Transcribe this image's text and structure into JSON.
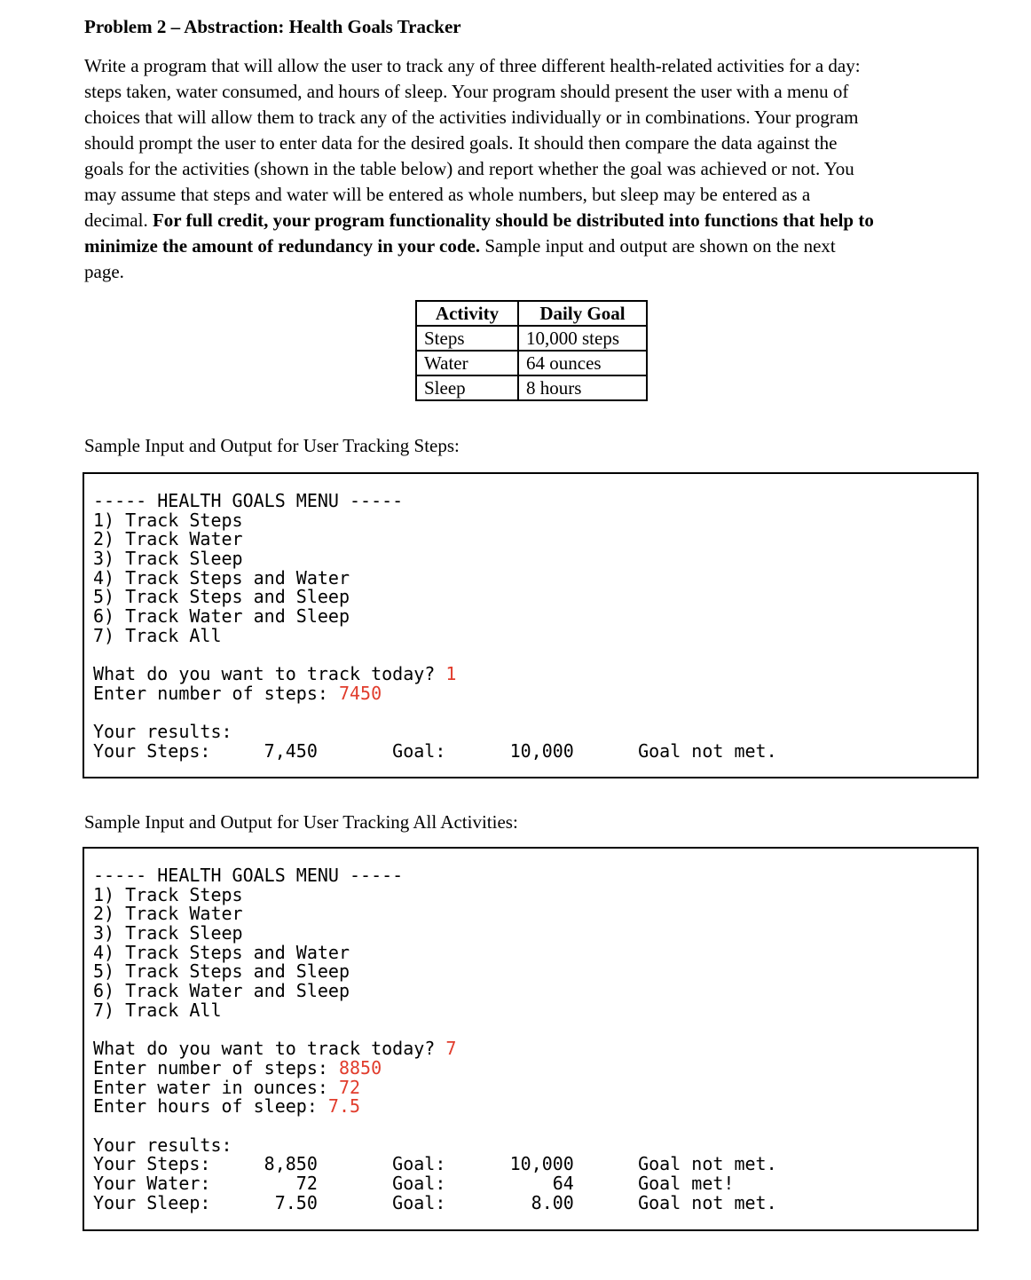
{
  "document": {
    "title": "Problem 2 – Abstraction: Health Goals Tracker",
    "paragraph_lines": [
      [
        {
          "t": "Write a program that will allow the user to track any of three different health-related activities for a day:"
        }
      ],
      [
        {
          "t": "steps taken, water consumed, and hours of sleep. Your program should present the user with a menu of"
        }
      ],
      [
        {
          "t": "choices that will allow them to track any of the activities individually or in combinations. Your program"
        }
      ],
      [
        {
          "t": "should prompt the user to enter data for the desired goals. It should then compare the data against the"
        }
      ],
      [
        {
          "t": "goals for the activities (shown in the table below) and report whether the goal was achieved or not. You"
        }
      ],
      [
        {
          "t": "may assume that steps and water will be entered as whole numbers, but sleep may be entered as a"
        }
      ],
      [
        {
          "t": "decimal. "
        },
        {
          "t": "For full credit, your program functionality should be distributed into functions that help to",
          "b": true
        }
      ],
      [
        {
          "t": "minimize the amount of redundancy in your code.",
          "b": true
        },
        {
          "t": " Sample input and output are shown on the next"
        }
      ],
      [
        {
          "t": "page."
        }
      ]
    ]
  },
  "goals_table": {
    "headers": [
      "Activity",
      "Daily Goal"
    ],
    "rows": [
      [
        "Steps",
        "10,000 steps"
      ],
      [
        "Water",
        "64 ounces"
      ],
      [
        "Sleep",
        "8 hours"
      ]
    ]
  },
  "samples": [
    {
      "label": "Sample Input and Output for User Tracking Steps:",
      "terminal_lines": [
        [
          {
            "t": "----- HEALTH GOALS MENU -----"
          }
        ],
        [
          {
            "t": "1) Track Steps"
          }
        ],
        [
          {
            "t": "2) Track Water"
          }
        ],
        [
          {
            "t": "3) Track Sleep"
          }
        ],
        [
          {
            "t": "4) Track Steps and Water"
          }
        ],
        [
          {
            "t": "5) Track Steps and Sleep"
          }
        ],
        [
          {
            "t": "6) Track Water and Sleep"
          }
        ],
        [
          {
            "t": "7) Track All"
          }
        ],
        [],
        [
          {
            "t": "What do you want to track today? "
          },
          {
            "t": "1",
            "r": true
          }
        ],
        [
          {
            "t": "Enter number of steps: "
          },
          {
            "t": "7450",
            "r": true
          }
        ],
        [],
        [
          {
            "t": "Your results:"
          }
        ],
        [
          {
            "t": "Your Steps:     7,450       Goal:      10,000      Goal not met."
          }
        ]
      ]
    },
    {
      "label": "Sample Input and Output for User Tracking All Activities:",
      "terminal_lines": [
        [
          {
            "t": "----- HEALTH GOALS MENU -----"
          }
        ],
        [
          {
            "t": "1) Track Steps"
          }
        ],
        [
          {
            "t": "2) Track Water"
          }
        ],
        [
          {
            "t": "3) Track Sleep"
          }
        ],
        [
          {
            "t": "4) Track Steps and Water"
          }
        ],
        [
          {
            "t": "5) Track Steps and Sleep"
          }
        ],
        [
          {
            "t": "6) Track Water and Sleep"
          }
        ],
        [
          {
            "t": "7) Track All"
          }
        ],
        [],
        [
          {
            "t": "What do you want to track today? "
          },
          {
            "t": "7",
            "r": true
          }
        ],
        [
          {
            "t": "Enter number of steps: "
          },
          {
            "t": "8850",
            "r": true
          }
        ],
        [
          {
            "t": "Enter water in ounces: "
          },
          {
            "t": "72",
            "r": true
          }
        ],
        [
          {
            "t": "Enter hours of sleep: "
          },
          {
            "t": "7.5",
            "r": true
          }
        ],
        [],
        [
          {
            "t": "Your results:"
          }
        ],
        [
          {
            "t": "Your Steps:     8,850       Goal:      10,000      Goal not met."
          }
        ],
        [
          {
            "t": "Your Water:        72       Goal:          64      Goal met!"
          }
        ],
        [
          {
            "t": "Your Sleep:      7.50       Goal:        8.00      Goal not met."
          }
        ]
      ]
    }
  ],
  "colors": {
    "input_red": "#e13c2c",
    "text": "#000000",
    "border": "#000000"
  }
}
